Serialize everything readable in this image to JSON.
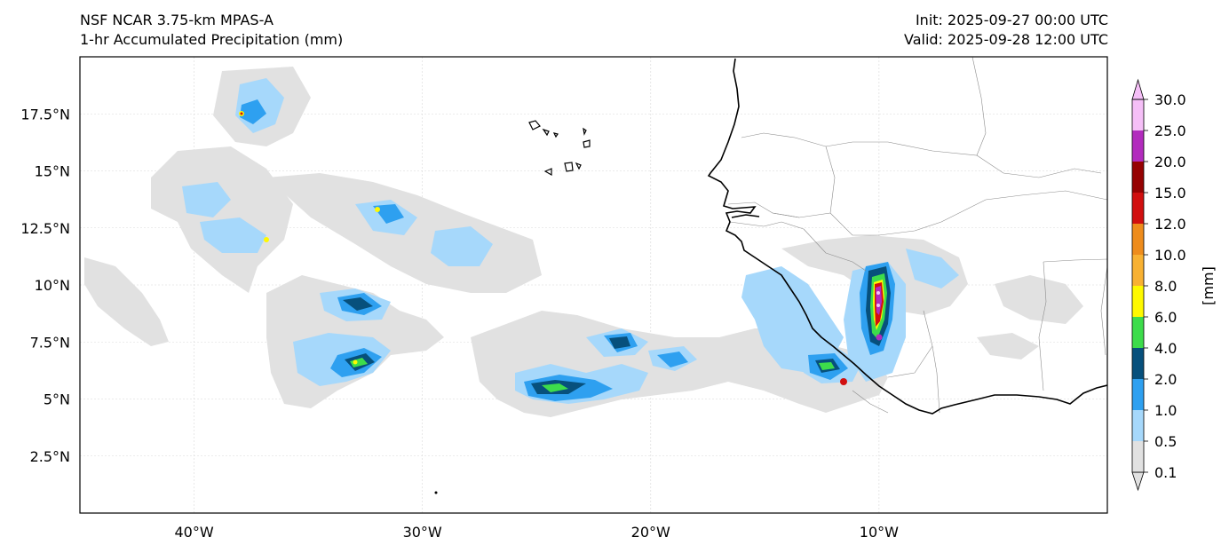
{
  "header": {
    "model_title": "NSF NCAR 3.75-km MPAS-A",
    "field_title": "1-hr Accumulated Precipitation (mm)",
    "init_label": "Init: 2025-09-27 00:00 UTC",
    "valid_label": "Valid: 2025-09-28 12:00 UTC"
  },
  "map": {
    "lon_range": [
      -45,
      0
    ],
    "lat_range": [
      0,
      20
    ],
    "lat_ticks": [
      {
        "value": 17.5,
        "label": "17.5°N"
      },
      {
        "value": 15,
        "label": "15°N"
      },
      {
        "value": 12.5,
        "label": "12.5°N"
      },
      {
        "value": 10,
        "label": "10°N"
      },
      {
        "value": 7.5,
        "label": "7.5°N"
      },
      {
        "value": 5,
        "label": "5°N"
      },
      {
        "value": 2.5,
        "label": "2.5°N"
      }
    ],
    "lon_ticks": [
      {
        "value": -40,
        "label": "40°W"
      },
      {
        "value": -30,
        "label": "30°W"
      },
      {
        "value": -20,
        "label": "20°W"
      },
      {
        "value": -10,
        "label": "10°W"
      }
    ],
    "gridlines": true
  },
  "colorbar": {
    "unit_label": "[mm]",
    "levels": [
      "0.1",
      "0.5",
      "1.0",
      "2.0",
      "4.0",
      "6.0",
      "8.0",
      "10.0",
      "12.0",
      "15.0",
      "20.0",
      "25.0",
      "30.0"
    ],
    "colors": [
      "#e1e1e1",
      "#a6d8fb",
      "#2ea0f0",
      "#07507c",
      "#3ddc4b",
      "#fef900",
      "#f8b132",
      "#ee8c1c",
      "#d10f0f",
      "#960202",
      "#b22bbd",
      "#f5bff7"
    ],
    "extend": "both"
  },
  "colors": {
    "coastline": "#000000",
    "borders": "#8c8c8c",
    "gridline": "#d8d8d8"
  }
}
